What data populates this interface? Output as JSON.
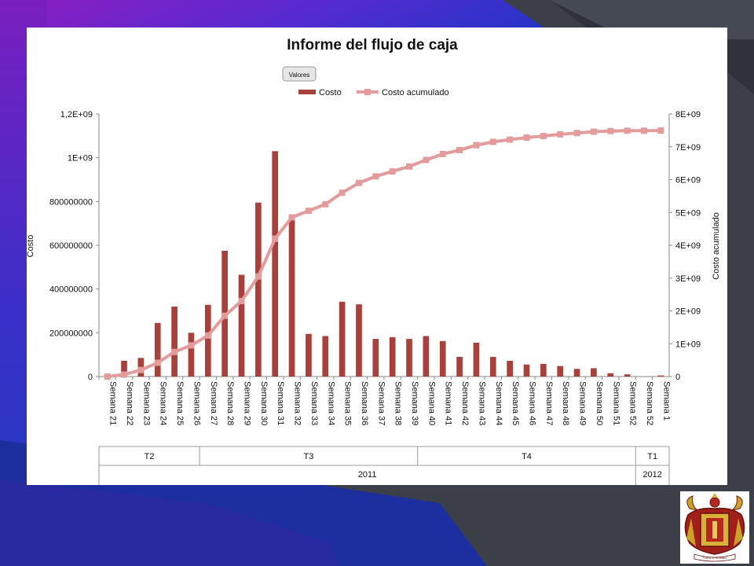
{
  "slide": {
    "logo_caption": "Virtus et Scientia",
    "colors": {
      "bg_purple": "#7a1fb0",
      "bg_blue": "#1f3fb0",
      "bg_gray": "#3b3f49",
      "bar": "#a8403c",
      "line": "#e39b9b"
    }
  },
  "chart_data": {
    "type": "bar+line",
    "title": "Informe del flujo de caja",
    "field_button": "Valores",
    "legend_position": "top",
    "ylabel": "Costo",
    "y2label": "Costo acumulado",
    "ylim": [
      0,
      1200000000
    ],
    "y2lim": [
      0,
      8000000000
    ],
    "yticks": [
      "0",
      "200000000",
      "400000000",
      "600000000",
      "800000000",
      "1E+09",
      "1,2E+09"
    ],
    "y2ticks": [
      "0",
      "1E+09",
      "2E+09",
      "3E+09",
      "4E+09",
      "5E+09",
      "6E+09",
      "7E+09",
      "8E+09"
    ],
    "categories": [
      "Semana 21",
      "Semana 22",
      "Semana 23",
      "Semana 24",
      "Semana 25",
      "Semana 26",
      "Semana 27",
      "Semana 28",
      "Semana 29",
      "Semana 30",
      "Semana 31",
      "Semana 32",
      "Semana 33",
      "Semana 34",
      "Semana 35",
      "Semana 36",
      "Semana 37",
      "Semana 38",
      "Semana 39",
      "Semana 40",
      "Semana 41",
      "Semana 42",
      "Semana 43",
      "Semana 44",
      "Semana 45",
      "Semana 46",
      "Semana 47",
      "Semana 48",
      "Semana 49",
      "Semana 50",
      "Semana 51",
      "Semana 52",
      "Semana 52",
      "Semana 1"
    ],
    "quarters": [
      {
        "label": "T2",
        "start": 0,
        "end": 5
      },
      {
        "label": "T3",
        "start": 6,
        "end": 18
      },
      {
        "label": "T4",
        "start": 19,
        "end": 31
      },
      {
        "label": "T1",
        "start": 32,
        "end": 33
      }
    ],
    "years": [
      {
        "label": "2011",
        "start": 0,
        "end": 31
      },
      {
        "label": "2012",
        "start": 32,
        "end": 33
      }
    ],
    "series": [
      {
        "name": "Costo",
        "type": "bar",
        "axis": "left",
        "values": [
          2000000,
          72000000,
          85000000,
          245000000,
          320000000,
          200000000,
          328000000,
          575000000,
          465000000,
          795000000,
          1030000000,
          715000000,
          195000000,
          185000000,
          342000000,
          330000000,
          172000000,
          180000000,
          172000000,
          185000000,
          162000000,
          90000000,
          155000000,
          90000000,
          72000000,
          55000000,
          58000000,
          48000000,
          35000000,
          38000000,
          15000000,
          10000000,
          0,
          5000000
        ]
      },
      {
        "name": "Costo acumulado",
        "type": "line",
        "axis": "right",
        "values": [
          0,
          60000000,
          200000000,
          420000000,
          750000000,
          950000000,
          1250000000,
          1850000000,
          2300000000,
          3050000000,
          4200000000,
          4850000000,
          5050000000,
          5250000000,
          5600000000,
          5900000000,
          6100000000,
          6250000000,
          6400000000,
          6600000000,
          6780000000,
          6900000000,
          7050000000,
          7150000000,
          7220000000,
          7280000000,
          7330000000,
          7380000000,
          7420000000,
          7460000000,
          7480000000,
          7490000000,
          7490000000,
          7495000000
        ]
      }
    ]
  }
}
